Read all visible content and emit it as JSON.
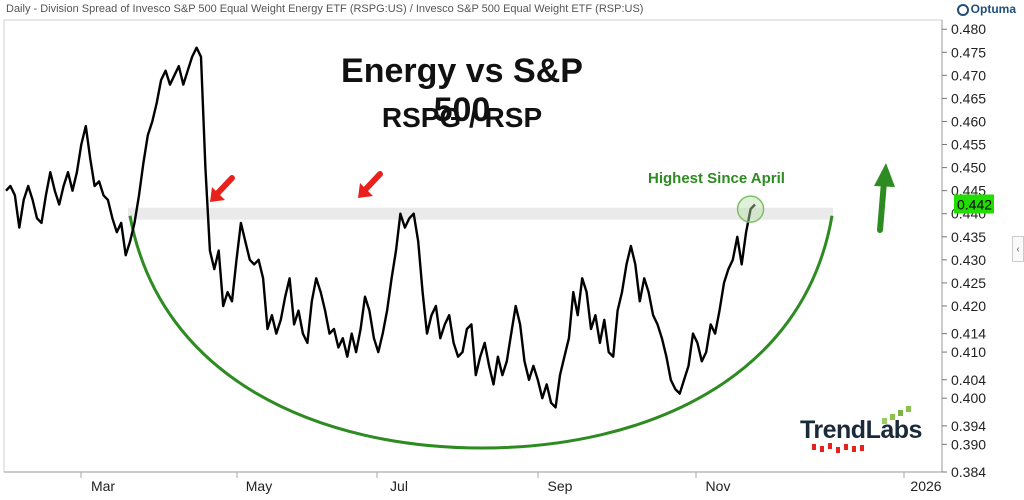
{
  "header": {
    "description": "Daily - Division Spread of Invesco S&P 500 Equal Weight Energy ETF (RSPG:US) / Invesco S&P 500 Equal Weight ETF (RSP:US)",
    "provider": "Optuma"
  },
  "brand": "TrendLabs",
  "colors": {
    "line": "#000000",
    "arc": "#2e8b22",
    "arrow_red": "#e8211c",
    "arrow_green": "#2e8b22",
    "price_tag": "#22dd00",
    "band": "#d9d9d9"
  },
  "chart_data": {
    "type": "line",
    "title": "Energy vs S&P 500",
    "subtitle": "RSPG / RSP",
    "xlabel": "",
    "ylabel": "",
    "x_tick_labels": [
      "Mar",
      "May",
      "Jul",
      "Sep",
      "Nov",
      "2026"
    ],
    "y_tick_labels": [
      "0.480",
      "0.475",
      "0.470",
      "0.465",
      "0.460",
      "0.455",
      "0.450",
      "0.445",
      "0.440",
      "0.435",
      "0.430",
      "0.425",
      "0.420",
      "0.414",
      "0.410",
      "0.404",
      "0.400",
      "0.394",
      "0.390",
      "0.384"
    ],
    "ylim": [
      0.384,
      0.482
    ],
    "last_value": "0.442",
    "annotations": [
      "Highest Since April"
    ],
    "resistance_level": 0.44,
    "grid": false,
    "series": [
      {
        "values": [
          0.445,
          0.446,
          0.444,
          0.437,
          0.443,
          0.446,
          0.443,
          0.439,
          0.438,
          0.444,
          0.449,
          0.445,
          0.442,
          0.446,
          0.449,
          0.445,
          0.449,
          0.455,
          0.459,
          0.452,
          0.446,
          0.447,
          0.444,
          0.443,
          0.439,
          0.436,
          0.438,
          0.431,
          0.434,
          0.438,
          0.444,
          0.451,
          0.457,
          0.46,
          0.464,
          0.469,
          0.471,
          0.468,
          0.47,
          0.472,
          0.468,
          0.471,
          0.474,
          0.476,
          0.474,
          0.45,
          0.432,
          0.428,
          0.432,
          0.42,
          0.423,
          0.421,
          0.43,
          0.438,
          0.434,
          0.43,
          0.429,
          0.43,
          0.426,
          0.415,
          0.418,
          0.414,
          0.417,
          0.422,
          0.426,
          0.416,
          0.419,
          0.414,
          0.412,
          0.421,
          0.426,
          0.423,
          0.419,
          0.414,
          0.415,
          0.411,
          0.413,
          0.409,
          0.414,
          0.41,
          0.415,
          0.422,
          0.419,
          0.413,
          0.41,
          0.414,
          0.419,
          0.426,
          0.432,
          0.44,
          0.437,
          0.439,
          0.44,
          0.434,
          0.423,
          0.414,
          0.418,
          0.42,
          0.413,
          0.416,
          0.418,
          0.412,
          0.409,
          0.41,
          0.415,
          0.416,
          0.405,
          0.409,
          0.412,
          0.407,
          0.403,
          0.409,
          0.405,
          0.408,
          0.414,
          0.42,
          0.416,
          0.408,
          0.404,
          0.407,
          0.404,
          0.4,
          0.403,
          0.399,
          0.398,
          0.405,
          0.409,
          0.413,
          0.423,
          0.418,
          0.426,
          0.423,
          0.415,
          0.418,
          0.412,
          0.417,
          0.41,
          0.409,
          0.419,
          0.423,
          0.429,
          0.433,
          0.429,
          0.421,
          0.426,
          0.423,
          0.418,
          0.416,
          0.413,
          0.409,
          0.404,
          0.402,
          0.401,
          0.404,
          0.407,
          0.414,
          0.412,
          0.408,
          0.41,
          0.416,
          0.414,
          0.419,
          0.425,
          0.428,
          0.43,
          0.435,
          0.429,
          0.436,
          0.441,
          0.442
        ]
      }
    ]
  }
}
